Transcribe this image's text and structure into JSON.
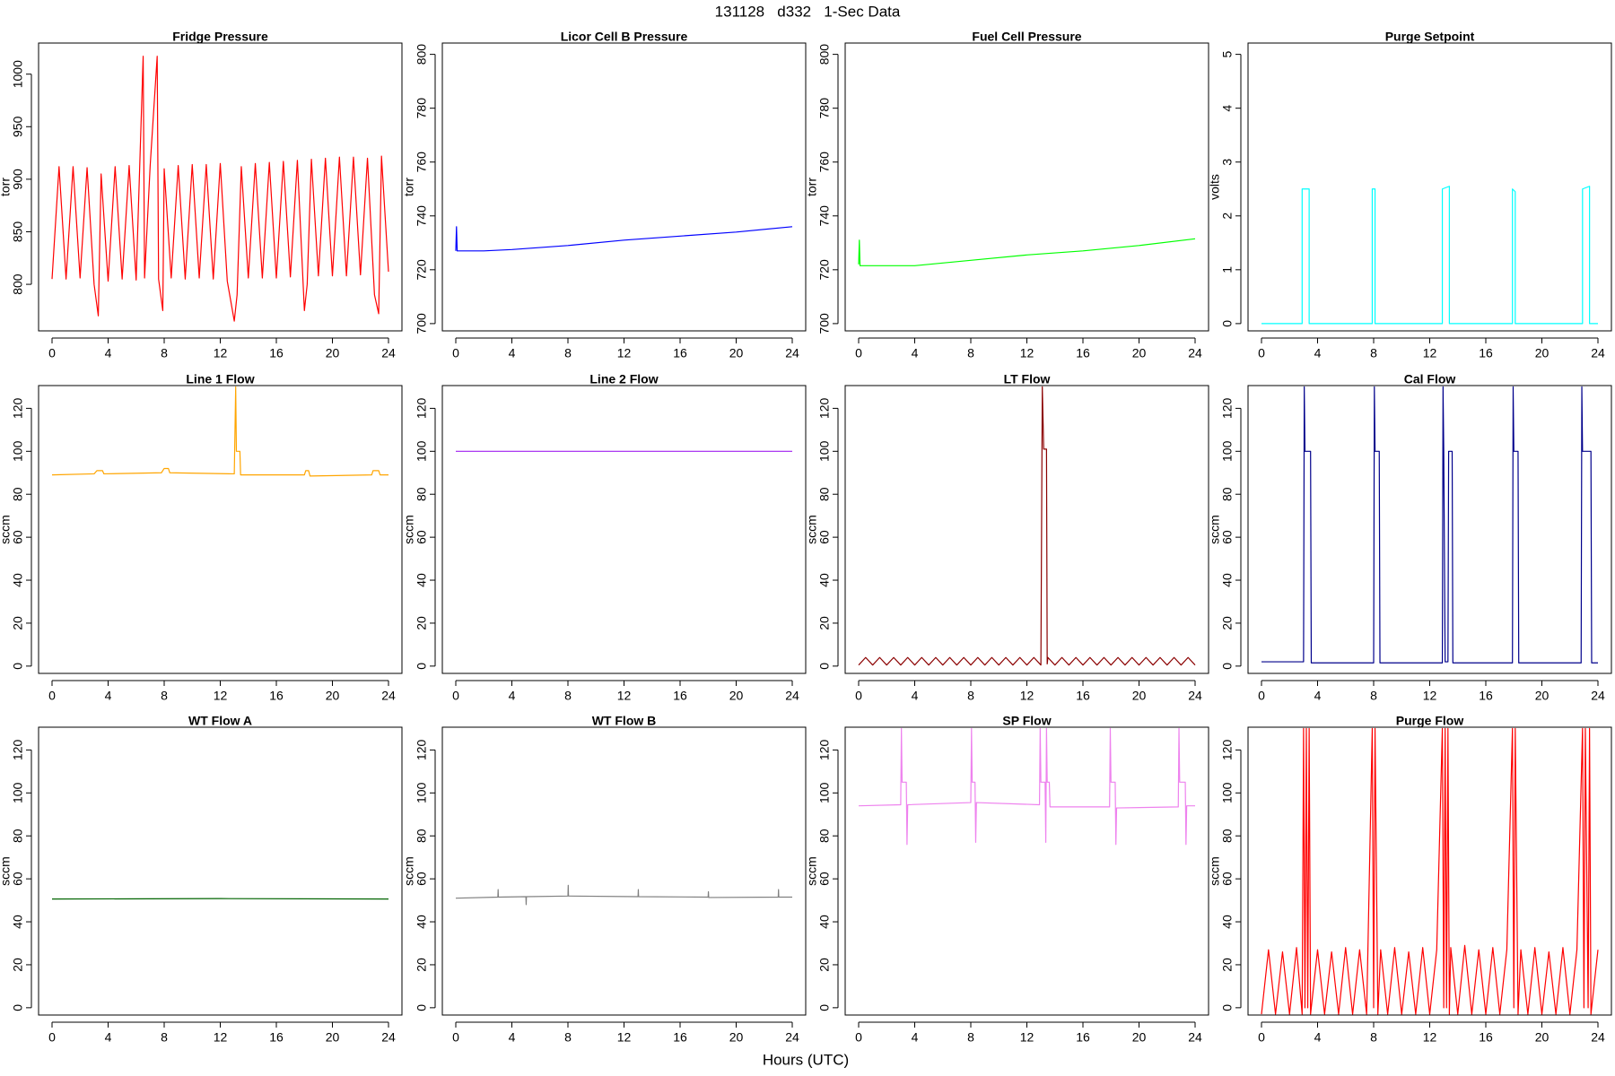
{
  "title": "131128   d332   1-Sec Data",
  "xlabel": "Hours (UTC)",
  "chart_data": [
    {
      "type": "line",
      "title": "Fridge Pressure",
      "ylabel": "torr",
      "color": "#ff0000",
      "xlim": [
        -0.96,
        24.96
      ],
      "xticks": [
        0,
        4,
        8,
        12,
        16,
        20,
        24
      ],
      "ylim": [
        755.7,
        1029.6
      ],
      "yticks": [
        800,
        850,
        900,
        950,
        1000
      ],
      "x": [
        0,
        0.5,
        1,
        1.5,
        2,
        2.5,
        3,
        3.3,
        3.5,
        4,
        4.5,
        5,
        5.5,
        6,
        6.5,
        6.6,
        7,
        7.5,
        7.6,
        7.9,
        8,
        8.5,
        9,
        9.5,
        10,
        10.5,
        11,
        11.5,
        12,
        12.5,
        13,
        13.2,
        13.5,
        14,
        14.5,
        15,
        15.5,
        16,
        16.5,
        17,
        17.5,
        18,
        18.2,
        18.5,
        19,
        19.5,
        20,
        20.5,
        21,
        21.5,
        22,
        22.5,
        23,
        23.3,
        23.5,
        24
      ],
      "values": [
        805,
        912,
        805,
        912,
        806,
        911,
        800,
        770,
        905,
        803,
        912,
        805,
        913,
        804,
        1017,
        806,
        913,
        1017,
        805,
        775,
        910,
        806,
        913,
        805,
        914,
        806,
        914,
        805,
        915,
        803,
        765,
        790,
        912,
        806,
        915,
        806,
        916,
        806,
        917,
        807,
        918,
        775,
        800,
        919,
        808,
        920,
        808,
        921,
        808,
        921,
        809,
        920,
        790,
        772,
        922,
        812
      ]
    },
    {
      "type": "line",
      "title": "Licor Cell B Pressure",
      "ylabel": "torr",
      "color": "#0000ff",
      "xlim": [
        -0.96,
        24.96
      ],
      "xticks": [
        0,
        4,
        8,
        12,
        16,
        20,
        24
      ],
      "ylim": [
        697.3,
        804.2
      ],
      "yticks": [
        700,
        720,
        740,
        760,
        780,
        800
      ],
      "x": [
        0,
        0.05,
        0.1,
        2,
        4,
        8,
        12,
        16,
        20,
        24
      ],
      "values": [
        727,
        736,
        727,
        727,
        727.5,
        729,
        731,
        732.5,
        734,
        736
      ]
    },
    {
      "type": "line",
      "title": "Fuel Cell Pressure",
      "ylabel": "torr",
      "color": "#00ff00",
      "xlim": [
        -0.96,
        24.96
      ],
      "xticks": [
        0,
        4,
        8,
        12,
        16,
        20,
        24
      ],
      "ylim": [
        697.3,
        804.2
      ],
      "yticks": [
        700,
        720,
        740,
        760,
        780,
        800
      ],
      "x": [
        0,
        0.05,
        0.1,
        4,
        8,
        12,
        16,
        20,
        24
      ],
      "values": [
        722,
        731,
        721.5,
        721.5,
        723.5,
        725.5,
        727,
        729,
        731.5
      ]
    },
    {
      "type": "line",
      "title": "Purge Setpoint",
      "ylabel": "volts",
      "color": "#00ffff",
      "xlim": [
        -0.96,
        24.96
      ],
      "xticks": [
        0,
        4,
        8,
        12,
        16,
        20,
        24
      ],
      "ylim": [
        -0.135,
        5.21
      ],
      "yticks": [
        0,
        1,
        2,
        3,
        4,
        5
      ],
      "x": [
        0,
        2.9,
        2.9,
        3.4,
        3.4,
        7.9,
        7.9,
        8.1,
        8.1,
        12.9,
        12.9,
        13.4,
        13.4,
        17.9,
        17.9,
        18.1,
        18.1,
        22.9,
        22.9,
        23.4,
        23.4,
        24
      ],
      "values": [
        0,
        0,
        2.5,
        2.5,
        0,
        0,
        2.5,
        2.5,
        0,
        0,
        2.5,
        2.55,
        0,
        0,
        2.5,
        2.45,
        0,
        0,
        2.5,
        2.55,
        0,
        0
      ]
    },
    {
      "type": "line",
      "title": "Line 1 Flow",
      "ylabel": "sccm",
      "color": "#ffa500",
      "xlim": [
        -0.96,
        24.96
      ],
      "xticks": [
        0,
        4,
        8,
        12,
        16,
        20,
        24
      ],
      "ylim": [
        -3.4,
        130.6
      ],
      "yticks": [
        0,
        20,
        40,
        60,
        80,
        100,
        120
      ],
      "x": [
        0,
        3,
        3.2,
        3.6,
        3.7,
        7.8,
        8,
        8.3,
        8.4,
        13,
        13.1,
        13.15,
        13.4,
        13.45,
        18,
        18.1,
        18.3,
        18.4,
        22.8,
        22.9,
        23.3,
        23.4,
        24
      ],
      "values": [
        89,
        89.5,
        91,
        91,
        89.5,
        90,
        92,
        92,
        90,
        89.5,
        130,
        100,
        100,
        89,
        89,
        91,
        91,
        88.5,
        89,
        91,
        91,
        89,
        89
      ]
    },
    {
      "type": "line",
      "title": "Line 2 Flow",
      "ylabel": "sccm",
      "color": "#a020f0",
      "xlim": [
        -0.96,
        24.96
      ],
      "xticks": [
        0,
        4,
        8,
        12,
        16,
        20,
        24
      ],
      "ylim": [
        -3.4,
        130.6
      ],
      "yticks": [
        0,
        20,
        40,
        60,
        80,
        100,
        120
      ],
      "x": [
        0,
        24
      ],
      "values": [
        100,
        100
      ]
    },
    {
      "type": "line",
      "title": "LT Flow",
      "ylabel": "sccm",
      "color": "#8b0000",
      "xlim": [
        -0.96,
        24.96
      ],
      "xticks": [
        0,
        4,
        8,
        12,
        16,
        20,
        24
      ],
      "ylim": [
        -3.4,
        130.6
      ],
      "yticks": [
        0,
        20,
        40,
        60,
        80,
        100,
        120
      ],
      "x": [
        0,
        0.5,
        1,
        1.5,
        2,
        2.5,
        3,
        3.5,
        4,
        4.5,
        5,
        5.5,
        6,
        6.5,
        7,
        7.5,
        8,
        8.5,
        9,
        9.5,
        10,
        10.5,
        11,
        11.5,
        12,
        12.5,
        13,
        13.1,
        13.2,
        13.4,
        13.45,
        13.5,
        14,
        14.5,
        15,
        15.5,
        16,
        16.5,
        17,
        17.5,
        18,
        18.5,
        19,
        19.5,
        20,
        20.5,
        21,
        21.5,
        22,
        22.5,
        23,
        23.5,
        24
      ],
      "values": [
        0.5,
        4,
        0.5,
        4,
        0.5,
        4,
        0.5,
        4,
        0.5,
        4,
        0.5,
        4,
        0.5,
        4,
        0.5,
        4,
        0.5,
        4,
        0.5,
        4,
        0.5,
        4,
        0.5,
        4,
        0.5,
        4,
        0.5,
        130,
        101,
        101,
        1,
        4,
        0.5,
        4,
        0.5,
        4,
        0.5,
        4,
        0.5,
        4,
        0.5,
        4,
        0.5,
        4,
        0.5,
        4,
        0.5,
        4,
        0.5,
        4,
        0.5,
        4,
        0.5
      ]
    },
    {
      "type": "line",
      "title": "Cal Flow",
      "ylabel": "sccm",
      "color": "#00008b",
      "xlim": [
        -0.96,
        24.96
      ],
      "xticks": [
        0,
        4,
        8,
        12,
        16,
        20,
        24
      ],
      "ylim": [
        -3.4,
        130.6
      ],
      "yticks": [
        0,
        20,
        40,
        60,
        80,
        100,
        120
      ],
      "x": [
        0,
        3,
        3.05,
        3.1,
        3.5,
        3.55,
        8,
        8.05,
        8.1,
        8.4,
        8.45,
        12.9,
        12.95,
        13,
        13.1,
        13.3,
        13.35,
        13.6,
        13.65,
        17.9,
        17.95,
        18,
        18.3,
        18.35,
        22.8,
        22.85,
        22.9,
        23.5,
        23.55,
        24
      ],
      "values": [
        2,
        2,
        130,
        100,
        100,
        1.5,
        1.5,
        130,
        100,
        100,
        1.5,
        1.5,
        130,
        100,
        2,
        2,
        100,
        100,
        1.5,
        1.5,
        130,
        100,
        100,
        1.5,
        1.5,
        130,
        100,
        100,
        1.5,
        1.5
      ]
    },
    {
      "type": "line",
      "title": "WT Flow A",
      "ylabel": "sccm",
      "color": "#006400",
      "xlim": [
        -0.96,
        24.96
      ],
      "xticks": [
        0,
        4,
        8,
        12,
        16,
        20,
        24
      ],
      "ylim": [
        -3.4,
        130.6
      ],
      "yticks": [
        0,
        20,
        40,
        60,
        80,
        100,
        120
      ],
      "x": [
        0,
        12,
        24
      ],
      "values": [
        50.6,
        50.8,
        50.6
      ]
    },
    {
      "type": "line",
      "title": "WT Flow B",
      "ylabel": "sccm",
      "color": "#808080",
      "xlim": [
        -0.96,
        24.96
      ],
      "xticks": [
        0,
        4,
        8,
        12,
        16,
        20,
        24
      ],
      "ylim": [
        -3.4,
        130.6
      ],
      "yticks": [
        0,
        20,
        40,
        60,
        80,
        100,
        120
      ],
      "x": [
        0,
        3,
        3.02,
        3.04,
        5,
        5.02,
        5.04,
        8,
        8.02,
        8.04,
        13,
        13.02,
        13.04,
        18,
        18.02,
        18.04,
        23,
        23.02,
        23.04,
        24
      ],
      "values": [
        51,
        51.5,
        55,
        51.5,
        51.7,
        48,
        51.7,
        52,
        57,
        52,
        51.7,
        55,
        51.7,
        51.5,
        54,
        51.3,
        51.5,
        55,
        51.5,
        51.5
      ]
    },
    {
      "type": "line",
      "title": "SP Flow",
      "ylabel": "sccm",
      "color": "#ee82ee",
      "xlim": [
        -0.96,
        24.96
      ],
      "xticks": [
        0,
        4,
        8,
        12,
        16,
        20,
        24
      ],
      "ylim": [
        -3.4,
        130.6
      ],
      "yticks": [
        0,
        20,
        40,
        60,
        80,
        100,
        120
      ],
      "x": [
        0,
        3,
        3.05,
        3.1,
        3.4,
        3.45,
        3.5,
        8,
        8.05,
        8.1,
        8.3,
        8.35,
        8.4,
        12.9,
        12.95,
        13,
        13.3,
        13.35,
        13.4,
        13.45,
        13.6,
        13.65,
        17.9,
        17.95,
        18,
        18.3,
        18.35,
        18.4,
        22.8,
        22.85,
        22.9,
        23.3,
        23.35,
        23.4,
        24
      ],
      "values": [
        94,
        94.5,
        130,
        105,
        105,
        76,
        94.5,
        95.5,
        130,
        105,
        105,
        77,
        95.5,
        94.5,
        130,
        105,
        105,
        77,
        130,
        105,
        105,
        93.5,
        93.5,
        130,
        105,
        105,
        76,
        93,
        93.5,
        130,
        105,
        105,
        76,
        94,
        94
      ]
    },
    {
      "type": "line",
      "title": "Purge Flow",
      "ylabel": "sccm",
      "color": "#ff0000",
      "xlim": [
        -0.96,
        24.96
      ],
      "xticks": [
        0,
        4,
        8,
        12,
        16,
        20,
        24
      ],
      "ylim": [
        -3.4,
        130.6
      ],
      "yticks": [
        0,
        20,
        40,
        60,
        80,
        100,
        120
      ],
      "x": [
        0,
        0.5,
        1,
        1.5,
        2,
        2.5,
        2.9,
        3,
        3.1,
        3.2,
        3.3,
        3.4,
        3.5,
        4,
        4.5,
        5,
        5.5,
        6,
        6.5,
        7,
        7.5,
        7.9,
        8,
        8.1,
        8.3,
        8.5,
        9,
        9.5,
        10,
        10.5,
        11,
        11.5,
        12,
        12.5,
        12.9,
        13,
        13.1,
        13.2,
        13.3,
        13.4,
        13.5,
        14,
        14.5,
        15,
        15.5,
        16,
        16.5,
        17,
        17.5,
        17.9,
        18,
        18.1,
        18.3,
        18.5,
        19,
        19.5,
        20,
        20.5,
        21,
        21.5,
        22,
        22.5,
        22.9,
        23,
        23.1,
        23.3,
        23.4,
        23.5,
        24
      ],
      "values": [
        -3,
        27,
        -3,
        26,
        -3,
        28,
        -3,
        130,
        0,
        130,
        0,
        130,
        -3,
        27,
        -3,
        26,
        -3,
        28,
        -3,
        27,
        -3,
        130,
        0,
        130,
        -3,
        27,
        -3,
        28,
        -3,
        26,
        -3,
        28,
        -3,
        27,
        130,
        0,
        130,
        0,
        130,
        -3,
        28,
        -3,
        29,
        -3,
        27,
        -3,
        28,
        -3,
        27,
        130,
        0,
        130,
        -3,
        27,
        -3,
        28,
        -3,
        26,
        -3,
        28,
        -3,
        27,
        130,
        0,
        130,
        0,
        130,
        -3,
        27
      ]
    }
  ]
}
